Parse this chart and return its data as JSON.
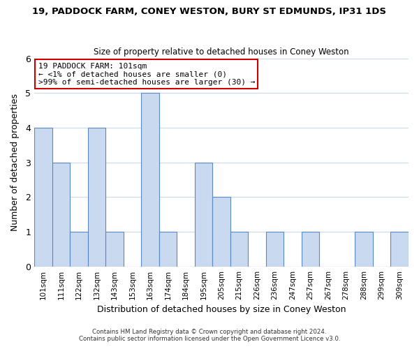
{
  "title": "19, PADDOCK FARM, CONEY WESTON, BURY ST EDMUNDS, IP31 1DS",
  "subtitle": "Size of property relative to detached houses in Coney Weston",
  "xlabel": "Distribution of detached houses by size in Coney Weston",
  "ylabel": "Number of detached properties",
  "bins": [
    "101sqm",
    "111sqm",
    "122sqm",
    "132sqm",
    "143sqm",
    "153sqm",
    "163sqm",
    "174sqm",
    "184sqm",
    "195sqm",
    "205sqm",
    "215sqm",
    "226sqm",
    "236sqm",
    "247sqm",
    "257sqm",
    "267sqm",
    "278sqm",
    "288sqm",
    "299sqm",
    "309sqm"
  ],
  "values": [
    4,
    3,
    1,
    4,
    1,
    0,
    5,
    1,
    0,
    3,
    2,
    1,
    0,
    1,
    0,
    1,
    0,
    0,
    1,
    0,
    1
  ],
  "bar_color": "#c8d9f0",
  "bar_edge_color": "#5a8ac6",
  "annotation_box_edge": "#cc0000",
  "annotation_text_line1": "19 PADDOCK FARM: 101sqm",
  "annotation_text_line2": "← <1% of detached houses are smaller (0)",
  "annotation_text_line3": ">99% of semi-detached houses are larger (30) →",
  "ylim": [
    0,
    6
  ],
  "yticks": [
    0,
    1,
    2,
    3,
    4,
    5,
    6
  ],
  "footer1": "Contains HM Land Registry data © Crown copyright and database right 2024.",
  "footer2": "Contains public sector information licensed under the Open Government Licence v3.0.",
  "bg_color": "#ffffff",
  "grid_color": "#c8d9f0"
}
